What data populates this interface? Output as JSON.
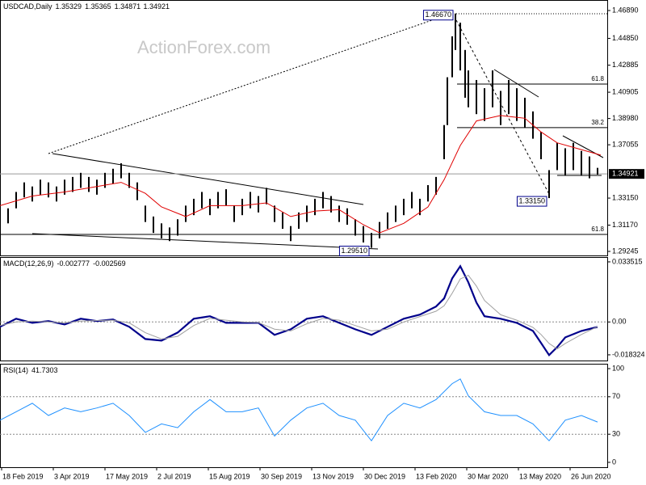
{
  "watermark": "ActionForex.com",
  "chart_data": [
    {
      "type": "range_bar",
      "title": "USDCAD,Daily",
      "readout": [
        1.35329,
        1.35365,
        1.34871,
        1.34921
      ],
      "color": "#000000",
      "xlim": [
        0,
        376
      ],
      "ylim": [
        1.2895,
        1.4766
      ],
      "yticks": [
        {
          "value": 1.4689,
          "label": "1.46890"
        },
        {
          "value": 1.4485,
          "label": "1.44850"
        },
        1.42885,
        1.40905,
        {
          "value": 1.3898,
          "label": "1.38980"
        },
        1.37055,
        {
          "value": 1.3315,
          "label": "1.33150"
        },
        {
          "value": 1.3117,
          "label": "1.31170"
        },
        1.29245
      ],
      "last_price": 1.34921,
      "x": [
        0,
        5,
        10,
        15,
        20,
        25,
        30,
        35,
        40,
        45,
        50,
        55,
        60,
        65,
        70,
        75,
        80,
        85,
        90,
        95,
        100,
        105,
        110,
        115,
        120,
        125,
        130,
        135,
        140,
        145,
        150,
        155,
        160,
        165,
        170,
        175,
        180,
        185,
        190,
        195,
        200,
        205,
        210,
        215,
        220,
        225,
        230,
        235,
        240,
        245,
        250,
        255,
        260,
        265,
        270,
        275,
        277,
        280,
        282,
        285,
        288,
        290,
        295,
        300,
        305,
        310,
        315,
        320,
        325,
        330,
        335,
        340,
        345,
        350,
        355,
        360,
        365,
        370
      ],
      "high": [
        1.332,
        1.324,
        1.336,
        1.343,
        1.34,
        1.345,
        1.343,
        1.34,
        1.345,
        1.347,
        1.35,
        1.347,
        1.345,
        1.35,
        1.353,
        1.357,
        1.35,
        1.343,
        1.326,
        1.318,
        1.313,
        1.31,
        1.316,
        1.326,
        1.331,
        1.336,
        1.331,
        1.336,
        1.338,
        1.326,
        1.331,
        1.336,
        1.333,
        1.339,
        1.326,
        1.321,
        1.311,
        1.321,
        1.326,
        1.331,
        1.336,
        1.333,
        1.326,
        1.324,
        1.316,
        1.311,
        1.306,
        1.314,
        1.321,
        1.326,
        1.331,
        1.336,
        1.331,
        1.341,
        1.347,
        1.385,
        1.42,
        1.45,
        1.4667,
        1.46,
        1.44,
        1.425,
        1.418,
        1.412,
        1.425,
        1.41,
        1.418,
        1.412,
        1.405,
        1.395,
        1.38,
        1.352,
        1.372,
        1.368,
        1.372,
        1.366,
        1.362,
        1.35365
      ],
      "low": [
        1.32,
        1.313,
        1.324,
        1.332,
        1.329,
        1.334,
        1.332,
        1.329,
        1.334,
        1.336,
        1.339,
        1.336,
        1.334,
        1.339,
        1.342,
        1.346,
        1.339,
        1.33,
        1.314,
        1.306,
        1.302,
        1.3,
        1.304,
        1.314,
        1.319,
        1.324,
        1.319,
        1.324,
        1.326,
        1.314,
        1.319,
        1.324,
        1.321,
        1.327,
        1.314,
        1.309,
        1.3,
        1.309,
        1.314,
        1.319,
        1.324,
        1.321,
        1.314,
        1.312,
        1.304,
        1.299,
        1.2951,
        1.302,
        1.309,
        1.314,
        1.319,
        1.324,
        1.319,
        1.329,
        1.334,
        1.36,
        1.385,
        1.42,
        1.44,
        1.425,
        1.405,
        1.398,
        1.393,
        1.388,
        1.398,
        1.385,
        1.393,
        1.388,
        1.383,
        1.375,
        1.36,
        1.3315,
        1.352,
        1.348,
        1.352,
        1.348,
        1.346,
        1.34871
      ],
      "ma": {
        "color": "#e00000",
        "x": [
          0,
          20,
          40,
          60,
          75,
          90,
          100,
          115,
          130,
          150,
          165,
          180,
          195,
          210,
          225,
          235,
          250,
          265,
          275,
          285,
          295,
          310,
          325,
          335,
          345,
          360,
          372
        ],
        "values": [
          1.326,
          1.333,
          1.336,
          1.34,
          1.343,
          1.335,
          1.325,
          1.318,
          1.326,
          1.326,
          1.328,
          1.318,
          1.322,
          1.323,
          1.312,
          1.306,
          1.313,
          1.325,
          1.345,
          1.37,
          1.388,
          1.392,
          1.39,
          1.38,
          1.372,
          1.367,
          1.363
        ]
      },
      "annotations": [
        {
          "value": 1.4667,
          "label": "1.46670"
        },
        {
          "value": 1.3315,
          "label": "1.33150"
        },
        {
          "value": 1.2951,
          "label": "1.29510"
        }
      ],
      "fib_levels": [
        {
          "ratio": 61.8,
          "price": 1.415
        },
        {
          "ratio": 38.2,
          "price": 1.3831
        },
        {
          "ratio": 61.8,
          "price": 1.3049
        }
      ]
    },
    {
      "type": "line",
      "title": "MACD(12,26,9)",
      "readout": [
        -0.002777,
        -0.002569
      ],
      "xlim": [
        0,
        376
      ],
      "ylim": [
        -0.0215,
        0.0362
      ],
      "yticks": [
        0.033515,
        {
          "value": 0,
          "label": "0.00"
        },
        -0.018324
      ],
      "levels": [
        0
      ],
      "x": [
        0,
        10,
        20,
        30,
        40,
        50,
        60,
        70,
        80,
        90,
        100,
        110,
        120,
        130,
        140,
        150,
        160,
        170,
        180,
        190,
        200,
        210,
        220,
        230,
        240,
        250,
        260,
        270,
        275,
        280,
        285,
        290,
        295,
        300,
        310,
        320,
        330,
        335,
        340,
        345,
        350,
        360,
        370
      ],
      "series": [
        {
          "color": "#00008b",
          "values": [
            -0.0027,
            0.0018,
            -0.0005,
            0.0005,
            -0.0014,
            0.0018,
            0.0005,
            0.0014,
            -0.0027,
            -0.0095,
            -0.0104,
            -0.0059,
            0.0018,
            0.0032,
            -0.0005,
            -0.0005,
            -0.0005,
            -0.0072,
            -0.0041,
            0.0018,
            0.0032,
            -0.0005,
            -0.0041,
            -0.0072,
            -0.0027,
            0.0018,
            0.0041,
            0.0086,
            0.0131,
            0.0243,
            0.0311,
            0.0221,
            0.0108,
            0.0032,
            0.0018,
            -0.0005,
            -0.005,
            -0.0117,
            -0.0185,
            -0.014,
            -0.0086,
            -0.005,
            -0.0028
          ]
        },
        {
          "color": "#a0a0a0",
          "values": [
            -0.002,
            0,
            0.0005,
            0,
            -0.0005,
            0.0005,
            0.0008,
            0.001,
            -0.0005,
            -0.006,
            -0.0095,
            -0.008,
            -0.002,
            0.002,
            0.001,
            0,
            -0.0003,
            -0.004,
            -0.005,
            -0.001,
            0.002,
            0.001,
            -0.002,
            -0.005,
            -0.004,
            0,
            0.003,
            0.006,
            0.009,
            0.016,
            0.024,
            0.026,
            0.02,
            0.012,
            0.004,
            0.001,
            -0.003,
            -0.007,
            -0.012,
            -0.015,
            -0.012,
            -0.007,
            -0.0026
          ]
        }
      ]
    },
    {
      "type": "line",
      "title": "RSI(14)",
      "readout": [
        41.7303
      ],
      "xlim": [
        0,
        376
      ],
      "ylim": [
        -5.2,
        105.2
      ],
      "yticks": [
        100,
        70,
        30,
        0
      ],
      "levels": [
        70,
        30
      ],
      "x": [
        0,
        10,
        20,
        30,
        40,
        50,
        60,
        70,
        80,
        90,
        100,
        110,
        120,
        130,
        140,
        150,
        160,
        170,
        180,
        190,
        200,
        210,
        220,
        230,
        240,
        250,
        260,
        270,
        280,
        285,
        290,
        300,
        310,
        320,
        330,
        340,
        350,
        360,
        370
      ],
      "series": [
        {
          "color": "#1e90ff",
          "values": [
            45,
            54,
            63,
            50,
            58,
            54,
            58,
            63,
            50,
            32,
            41,
            37,
            54,
            67,
            54,
            54,
            58,
            28,
            45,
            58,
            63,
            50,
            45,
            23,
            50,
            63,
            58,
            67,
            84,
            89,
            71,
            54,
            50,
            50,
            41,
            23,
            45,
            50,
            43
          ]
        }
      ],
      "xticks": [
        {
          "value": 1,
          "label": "18 Feb 2019"
        },
        {
          "value": 33,
          "label": "3 Apr 2019"
        },
        {
          "value": 65,
          "label": "17 May 2019"
        },
        {
          "value": 97,
          "label": "2 Jul 2019"
        },
        {
          "value": 129,
          "label": "15 Aug 2019"
        },
        {
          "value": 161,
          "label": "30 Sep 2019"
        },
        {
          "value": 193,
          "label": "13 Nov 2019"
        },
        {
          "value": 225,
          "label": "30 Dec 2019"
        },
        {
          "value": 257,
          "label": "13 Feb 2020"
        },
        {
          "value": 289,
          "label": "30 Mar 2020"
        },
        {
          "value": 321,
          "label": "13 May 2020"
        },
        {
          "value": 353,
          "label": "26 Jun 2020"
        }
      ]
    }
  ]
}
